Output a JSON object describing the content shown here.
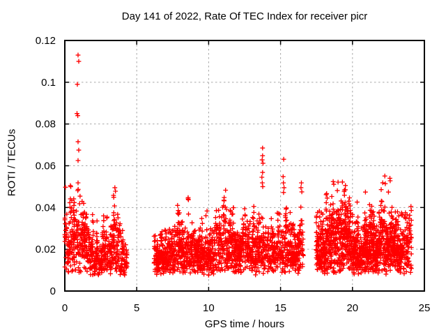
{
  "window": {
    "background": "#ffffff"
  },
  "chart_data": {
    "type": "scatter",
    "title": "Day 141 of 2022, Rate Of TEC Index for receiver picr",
    "xlabel": "GPS time / hours",
    "ylabel": "ROTI / TECUs",
    "xlim": [
      0,
      25
    ],
    "ylim": [
      0,
      0.12
    ],
    "xticks": [
      0,
      5,
      10,
      15,
      20,
      25
    ],
    "yticks": [
      0,
      0.02,
      0.04,
      0.06,
      0.08,
      0.1,
      0.12
    ],
    "grid": "dashed-at-major-ticks",
    "legend": "none",
    "axis_color": "#000000",
    "grid_color": "#a6a6a6",
    "marker": {
      "shape": "plus",
      "color": "#ff0000",
      "size": 6.8,
      "stroke_width": 1.35
    },
    "seed": 7,
    "series_name": "ROTI",
    "segments": [
      {
        "x_start": 0.0,
        "x_end": 4.35,
        "points": 620,
        "y_min": 0.0065,
        "cols_per_hour": 7,
        "envelope": [
          [
            0.0,
            0.042
          ],
          [
            0.5,
            0.046
          ],
          [
            1.0,
            0.042
          ],
          [
            1.5,
            0.036
          ],
          [
            2.0,
            0.029
          ],
          [
            2.5,
            0.03
          ],
          [
            2.9,
            0.038
          ],
          [
            3.3,
            0.04
          ],
          [
            3.6,
            0.044
          ],
          [
            3.9,
            0.034
          ],
          [
            4.35,
            0.03
          ]
        ]
      },
      {
        "x_start": 6.2,
        "x_end": 16.6,
        "points": 1600,
        "y_min": 0.0065,
        "cols_per_hour": 7,
        "envelope": [
          [
            6.2,
            0.026
          ],
          [
            6.8,
            0.03
          ],
          [
            7.4,
            0.034
          ],
          [
            8.2,
            0.042
          ],
          [
            8.8,
            0.036
          ],
          [
            9.4,
            0.036
          ],
          [
            10.0,
            0.036
          ],
          [
            10.6,
            0.038
          ],
          [
            11.2,
            0.042
          ],
          [
            11.8,
            0.036
          ],
          [
            12.4,
            0.044
          ],
          [
            13.0,
            0.04
          ],
          [
            13.6,
            0.042
          ],
          [
            14.0,
            0.038
          ],
          [
            14.6,
            0.036
          ],
          [
            15.1,
            0.046
          ],
          [
            15.5,
            0.043
          ],
          [
            16.0,
            0.04
          ],
          [
            16.4,
            0.046
          ],
          [
            16.6,
            0.034
          ]
        ]
      },
      {
        "x_start": 17.45,
        "x_end": 24.1,
        "points": 1350,
        "y_min": 0.0065,
        "cols_per_hour": 7,
        "envelope": [
          [
            17.45,
            0.032
          ],
          [
            17.9,
            0.04
          ],
          [
            18.4,
            0.044
          ],
          [
            18.8,
            0.05
          ],
          [
            19.2,
            0.046
          ],
          [
            19.6,
            0.044
          ],
          [
            20.0,
            0.047
          ],
          [
            20.4,
            0.04
          ],
          [
            20.9,
            0.038
          ],
          [
            21.4,
            0.04
          ],
          [
            21.9,
            0.044
          ],
          [
            22.25,
            0.05
          ],
          [
            22.7,
            0.042
          ],
          [
            23.1,
            0.04
          ],
          [
            23.5,
            0.042
          ],
          [
            23.8,
            0.045
          ],
          [
            24.1,
            0.044
          ]
        ]
      }
    ],
    "outliers": [
      [
        0.92,
        0.113
      ],
      [
        0.97,
        0.11
      ],
      [
        0.87,
        0.099
      ],
      [
        0.85,
        0.085
      ],
      [
        0.9,
        0.084
      ],
      [
        0.92,
        0.0715
      ],
      [
        0.97,
        0.0675
      ],
      [
        0.92,
        0.0625
      ],
      [
        0.92,
        0.0518
      ],
      [
        0.9,
        0.0481
      ],
      [
        0.05,
        0.0497
      ],
      [
        0.39,
        0.0505
      ],
      [
        3.48,
        0.0495
      ],
      [
        3.52,
        0.0478
      ],
      [
        13.75,
        0.0685
      ],
      [
        13.75,
        0.0648
      ],
      [
        13.72,
        0.0628
      ],
      [
        13.78,
        0.0612
      ],
      [
        13.75,
        0.0568
      ],
      [
        13.7,
        0.0545
      ],
      [
        13.73,
        0.0518
      ],
      [
        13.76,
        0.05
      ],
      [
        15.22,
        0.0631
      ],
      [
        15.18,
        0.0548
      ],
      [
        15.2,
        0.0518
      ],
      [
        15.24,
        0.0495
      ],
      [
        15.21,
        0.0472
      ],
      [
        16.45,
        0.0518
      ],
      [
        16.42,
        0.0495
      ],
      [
        16.48,
        0.0475
      ],
      [
        18.66,
        0.0524
      ],
      [
        18.7,
        0.0511
      ],
      [
        18.95,
        0.0481
      ],
      [
        19.3,
        0.0522
      ],
      [
        20.9,
        0.0474
      ],
      [
        22.25,
        0.0551
      ],
      [
        22.28,
        0.0514
      ],
      [
        22.5,
        0.0474
      ],
      [
        22.6,
        0.054
      ],
      [
        22.62,
        0.0528
      ]
    ]
  }
}
